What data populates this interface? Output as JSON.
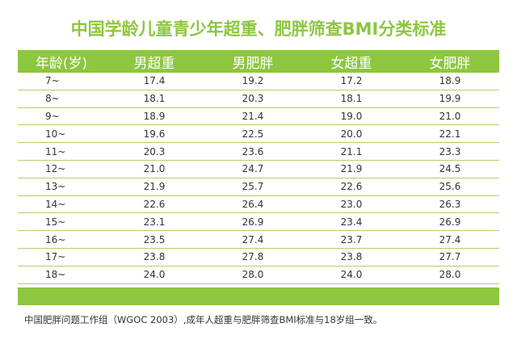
{
  "header": {
    "title": "中国学龄儿童青少年超重、肥胖筛查BMI分类标准"
  },
  "table": {
    "columns": [
      "年龄(岁)",
      "男超重",
      "男肥胖",
      "女超重",
      "女肥胖"
    ],
    "rows": [
      [
        "7~",
        "17.4",
        "19.2",
        "17.2",
        "18.9"
      ],
      [
        "8~",
        "18.1",
        "20.3",
        "18.1",
        "19.9"
      ],
      [
        "9~",
        "18.9",
        "21.4",
        "19.0",
        "21.0"
      ],
      [
        "10~",
        "19.6",
        "22.5",
        "20.0",
        "22.1"
      ],
      [
        "11~",
        "20.3",
        "23.6",
        "21.1",
        "23.3"
      ],
      [
        "12~",
        "21.0",
        "24.7",
        "21.9",
        "24.5"
      ],
      [
        "13~",
        "21.9",
        "25.7",
        "22.6",
        "25.6"
      ],
      [
        "14~",
        "22.6",
        "26.4",
        "23.0",
        "26.3"
      ],
      [
        "15~",
        "23.1",
        "26.9",
        "23.4",
        "26.9"
      ],
      [
        "16~",
        "23.5",
        "27.4",
        "23.7",
        "27.4"
      ],
      [
        "17~",
        "23.8",
        "27.8",
        "23.8",
        "27.7"
      ],
      [
        "18~",
        "24.0",
        "28.0",
        "24.0",
        "28.0"
      ]
    ]
  },
  "footnote": "中国肥胖问题工作组（WGOC 2003）,成年人超重与肥胖筛查BMI标准与18岁组一致。"
}
